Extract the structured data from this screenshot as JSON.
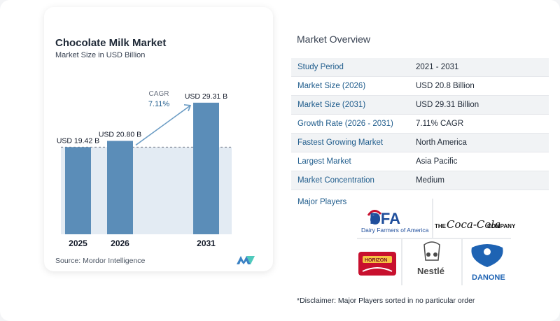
{
  "chart": {
    "title": "Chocolate Milk Market",
    "subtitle": "Market Size in USD Billion",
    "source": "Source: Mordor Intelligence",
    "cagr_label": "CAGR",
    "cagr_value": "7.11%"
  },
  "chart_data": {
    "type": "bar",
    "categories": [
      "2025",
      "2026",
      "2031"
    ],
    "values": [
      19.42,
      20.8,
      29.31
    ],
    "data_labels": [
      "USD 19.42 B",
      "USD 20.80 B",
      "USD 29.31 B"
    ],
    "title": "Chocolate Milk Market",
    "subtitle": "Market Size in USD Billion",
    "xlabel": "",
    "ylabel": "",
    "ylim": [
      0,
      32
    ],
    "grid": false,
    "annotation": "CAGR 7.11%"
  },
  "overview": {
    "title": "Market Overview",
    "rows": [
      {
        "label": "Study Period",
        "value": "2021 - 2031"
      },
      {
        "label": "Market Size (2026)",
        "value": "USD 20.8 Billion"
      },
      {
        "label": "Market Size (2031)",
        "value": "USD 29.31 Billion"
      },
      {
        "label": "Growth Rate (2026 - 2031)",
        "value": "7.11% CAGR"
      },
      {
        "label": "Fastest Growing Market",
        "value": "North America"
      },
      {
        "label": "Largest Market",
        "value": "Asia Pacific"
      },
      {
        "label": "Market Concentration",
        "value": "Medium"
      }
    ],
    "players_label": "Major Players",
    "disclaimer": "*Disclaimer: Major Players sorted in no particular order"
  },
  "players": {
    "dfa_mark": "DFA",
    "dfa_name": "Dairy Farmers of America",
    "coca_the": "THE",
    "coca_script": "Coca-Cola",
    "coca_company": "COMPANY",
    "horizon": "HORIZON",
    "nestle": "Nestlé",
    "danone": "DANONE"
  },
  "colors": {
    "bar": "#5b8db8",
    "shade": "#e3ebf3",
    "accent": "#1f5c8c",
    "arrow": "#6b9cc4"
  }
}
